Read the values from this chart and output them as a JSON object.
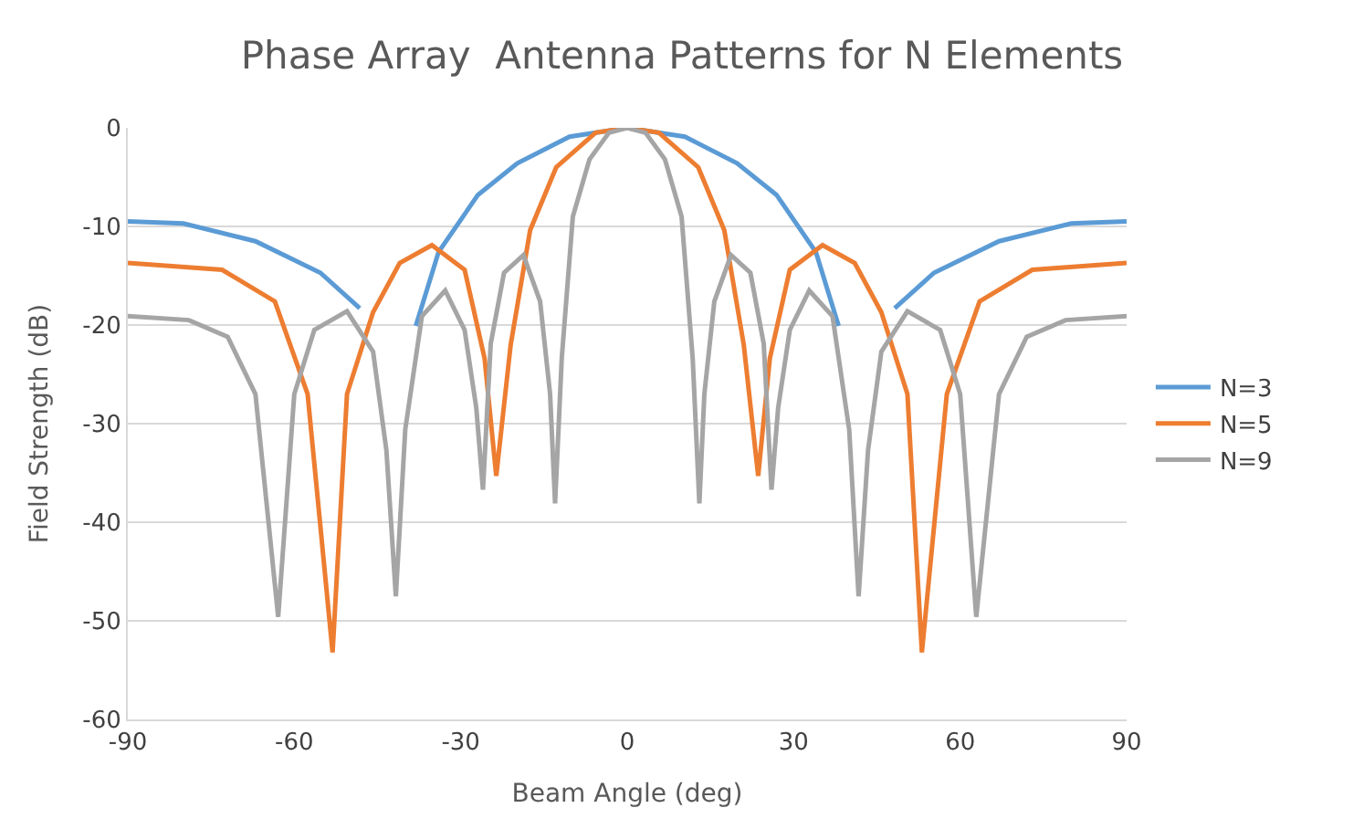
{
  "chart_data": {
    "type": "line",
    "title": "Phase Array  Antenna Patterns for N Elements",
    "xlabel": "Beam Angle (deg)",
    "ylabel": "Field Strength (dB)",
    "xlim": [
      -90,
      90
    ],
    "xticks": [
      -90,
      -60,
      -30,
      0,
      30,
      60,
      90
    ],
    "ylim": [
      -60,
      0
    ],
    "yticks": [
      -60,
      -50,
      -40,
      -30,
      -20,
      -10,
      0
    ],
    "grid": "y",
    "legend": "right",
    "marker": "none",
    "line_style": "solid",
    "series": [
      {
        "name": "N=3",
        "color": "#5b9bd5",
        "x": [
          -90,
          -80,
          -67,
          -55.3,
          -48.2,
          -42,
          -38.1,
          -34,
          -26.9,
          -19.8,
          -10.4,
          0,
          10.4,
          19.8,
          26.9,
          34,
          38.1,
          42,
          48.2,
          55.3,
          67,
          80,
          90
        ],
        "values": [
          -9.5,
          -9.7,
          -11.5,
          -14.7,
          -18.3,
          null,
          -20.1,
          -12.6,
          -6.8,
          -3.6,
          -0.9,
          0,
          -0.9,
          -3.6,
          -6.8,
          -12.6,
          -20.1,
          null,
          -18.3,
          -14.7,
          -11.5,
          -9.7,
          -9.5
        ]
      },
      {
        "name": "N=5",
        "color": "#ed7d31",
        "x": [
          -90,
          -73,
          -63.5,
          -57.6,
          -53.1,
          -50.5,
          -45.8,
          -41,
          -35.2,
          -29.3,
          -25.7,
          -23.6,
          -21,
          -17.5,
          -12.8,
          -5.7,
          0,
          5.7,
          12.8,
          17.5,
          21,
          23.6,
          25.7,
          29.3,
          35.2,
          41,
          45.8,
          50.5,
          53.1,
          57.6,
          63.5,
          73,
          90
        ],
        "values": [
          -13.7,
          -14.4,
          -17.6,
          -27,
          -53.2,
          -27,
          -18.7,
          -13.7,
          -11.9,
          -14.4,
          -23.4,
          -35.3,
          -22,
          -10.4,
          -4,
          -0.5,
          0,
          -0.5,
          -4,
          -10.4,
          -22,
          -35.3,
          -23.4,
          -14.4,
          -11.9,
          -13.7,
          -18.7,
          -27,
          -53.2,
          -27,
          -17.6,
          -14.4,
          -13.7
        ]
      },
      {
        "name": "N=9",
        "color": "#a5a5a5",
        "x": [
          -90,
          -79,
          -72,
          -67,
          -62.9,
          -60,
          -56.4,
          -50.5,
          -45.8,
          -43.4,
          -41.7,
          -40,
          -37,
          -32.8,
          -29.3,
          -27.2,
          -26,
          -24.6,
          -22.2,
          -18.7,
          -15.7,
          -13.9,
          -13,
          -11.8,
          -9.8,
          -6.8,
          -3.3,
          0,
          3.3,
          6.8,
          9.8,
          11.8,
          13,
          13.9,
          15.7,
          18.7,
          22.2,
          24.6,
          26,
          27.2,
          29.3,
          32.8,
          37,
          40,
          41.7,
          43.4,
          45.8,
          50.5,
          56.4,
          60,
          62.9,
          67,
          72,
          79,
          90
        ],
        "values": [
          -19.1,
          -19.5,
          -21.2,
          -27,
          -49.6,
          -27,
          -20.5,
          -18.6,
          -22.7,
          -32.7,
          -47.5,
          -30.6,
          -19.1,
          -16.5,
          -20.5,
          -28.4,
          -36.7,
          -21.9,
          -14.7,
          -12.9,
          -17.6,
          -27,
          -38.1,
          -23.4,
          -9,
          -3.2,
          -0.5,
          0,
          -0.5,
          -3.2,
          -9,
          -23.4,
          -38.1,
          -27,
          -17.6,
          -12.9,
          -14.7,
          -21.9,
          -36.7,
          -28.4,
          -20.5,
          -16.5,
          -19.1,
          -30.6,
          -47.5,
          -32.7,
          -22.7,
          -18.6,
          -20.5,
          -27,
          -49.6,
          -27,
          -21.2,
          -19.5,
          -19.1
        ]
      }
    ]
  }
}
